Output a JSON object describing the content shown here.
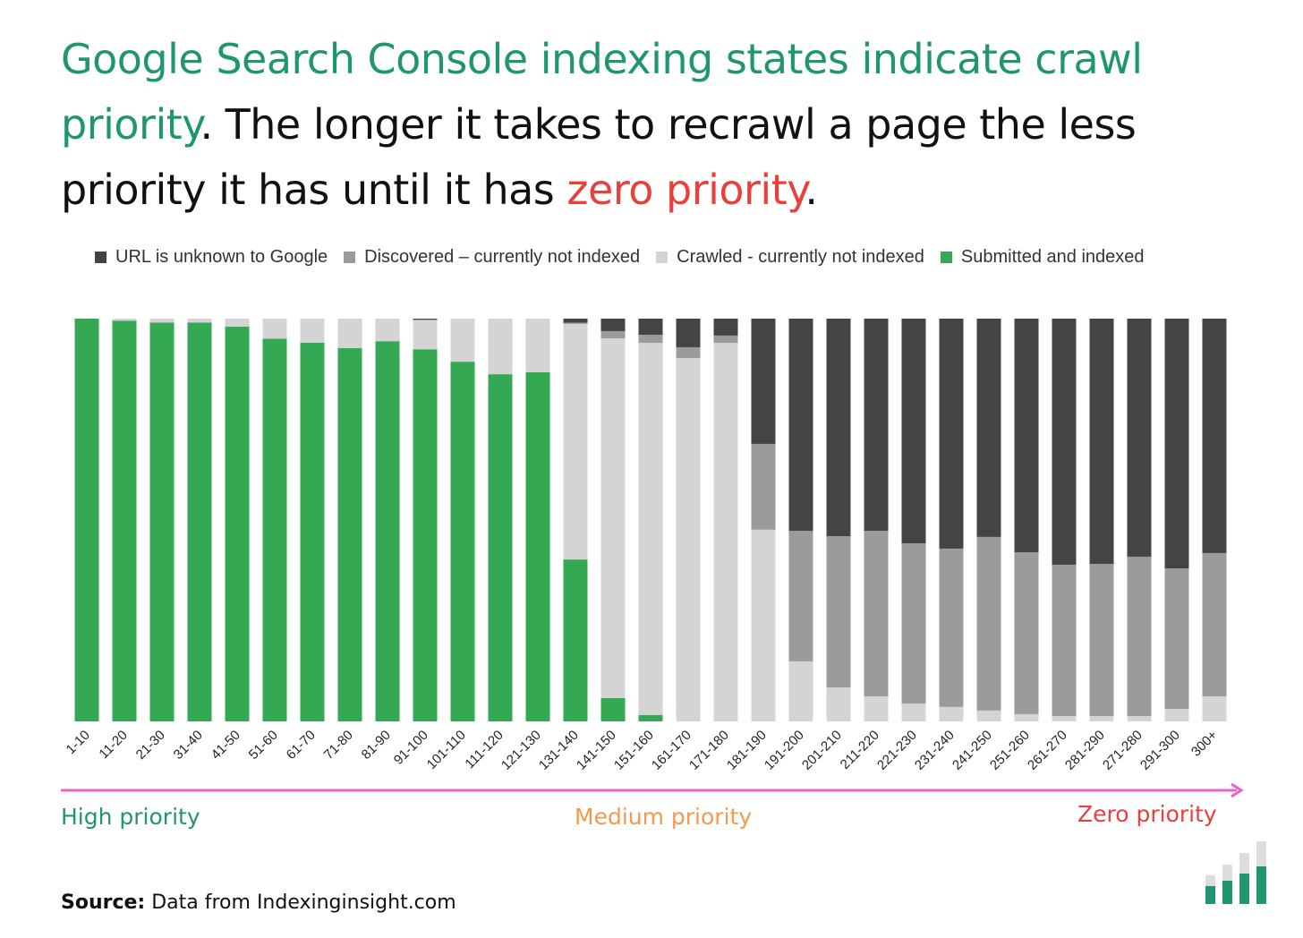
{
  "title": {
    "part1": "Google Search Console indexing states indicate crawl priority",
    "part2": ". The longer it takes to recrawl a page the less priority it has until it has ",
    "part3": "zero priority",
    "part4": "."
  },
  "colors": {
    "unknown": "#444444",
    "discovered": "#9b9b9b",
    "crawled": "#d4d4d4",
    "indexed": "#34a853",
    "title_green": "#1f9670",
    "zero": "#e8403b",
    "medium": "#f39a4c",
    "arrow": "#e764c4"
  },
  "chart_data": {
    "type": "bar",
    "stacked": true,
    "normalized": true,
    "ylim": [
      0,
      100
    ],
    "grid": false,
    "legend": "top",
    "categories": [
      "1-10",
      "11-20",
      "21-30",
      "31-40",
      "41-50",
      "51-60",
      "61-70",
      "71-80",
      "81-90",
      "91-100",
      "101-110",
      "111-120",
      "121-130",
      "131-140",
      "141-150",
      "151-160",
      "161-170",
      "171-180",
      "181-190",
      "191-200",
      "201-210",
      "211-220",
      "221-230",
      "231-240",
      "241-250",
      "251-260",
      "261-270",
      "281-290",
      "271-280",
      "291-300",
      "300+"
    ],
    "series": [
      {
        "name": "Submitted and indexed",
        "color": "#34a853",
        "values": [
          100,
          99.5,
          99,
          99,
          98,
          95,
          94,
          92.7,
          94.4,
          92.4,
          89.3,
          86.2,
          86.7,
          40.2,
          5.8,
          1.6,
          0,
          0,
          0,
          0,
          0,
          0,
          0,
          0,
          0,
          0,
          0,
          0,
          0,
          0,
          0
        ]
      },
      {
        "name": "Crawled - currently not indexed",
        "color": "#d4d4d4",
        "values": [
          0,
          0.5,
          1,
          1,
          2,
          5,
          6,
          7.3,
          5.6,
          7.3,
          10.7,
          13.8,
          13.3,
          58.5,
          89.3,
          92.4,
          90.2,
          94,
          47.6,
          14.9,
          8.4,
          6.2,
          4.4,
          3.6,
          2.7,
          1.8,
          1.3,
          1.3,
          1.3,
          3.1,
          6.2
        ]
      },
      {
        "name": "Discovered – currently not indexed",
        "color": "#9b9b9b",
        "values": [
          0,
          0,
          0,
          0,
          0,
          0,
          0,
          0,
          0,
          0,
          0,
          0,
          0,
          0.3,
          1.8,
          2,
          2.7,
          1.8,
          21.3,
          32.4,
          37.6,
          41.1,
          39.8,
          39.3,
          43.1,
          40.2,
          37.6,
          37.8,
          39.6,
          34.9,
          35.6
        ]
      },
      {
        "name": "URL is unknown to Google",
        "color": "#444444",
        "values": [
          0,
          0,
          0,
          0,
          0,
          0,
          0,
          0,
          0,
          0.3,
          0,
          0,
          0,
          1,
          3.1,
          4,
          7.1,
          4.2,
          31.1,
          52.7,
          54,
          52.7,
          55.8,
          57.1,
          54.2,
          58,
          61.1,
          60.9,
          59.1,
          62,
          58.2
        ]
      }
    ],
    "legend_order": [
      "URL is unknown to Google",
      "Discovered – currently not indexed",
      "Crawled - currently not indexed",
      "Submitted and indexed"
    ]
  },
  "priority": {
    "high": "High priority",
    "medium": "Medium priority",
    "zero": "Zero priority"
  },
  "source": {
    "label": "Source:",
    "text": " Data from Indexinginsight.com"
  }
}
